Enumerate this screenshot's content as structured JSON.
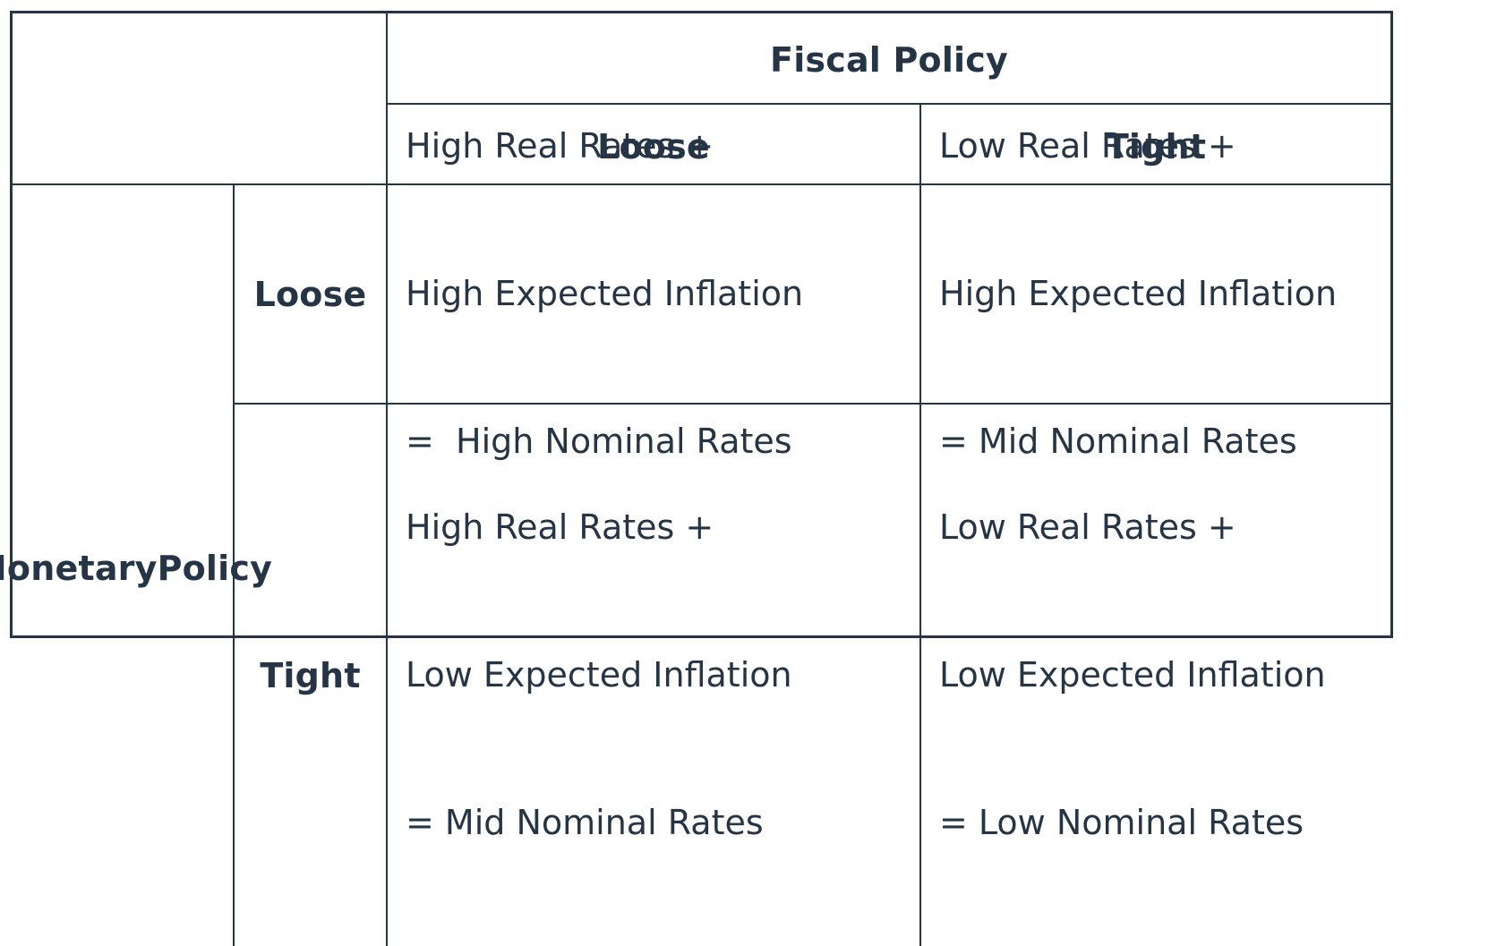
{
  "column_header": {
    "title": "Fiscal Policy",
    "columns": [
      "Loose",
      "Tight"
    ]
  },
  "row_header": {
    "title_lines": [
      "Monetary",
      "Policy"
    ],
    "rows": [
      "Loose",
      "Tight"
    ]
  },
  "cells": {
    "loose_loose": [
      "High Real Rates +",
      "High Expected Inflation",
      "=  High Nominal Rates"
    ],
    "loose_tight": [
      "Low Real Rates +",
      "High Expected Inflation",
      "= Mid Nominal Rates"
    ],
    "tight_loose": [
      "High Real Rates +",
      "Low Expected Inflation",
      "= Mid Nominal Rates"
    ],
    "tight_tight": [
      "Low Real Rates +",
      "Low Expected Inflation",
      "= Low Nominal Rates"
    ]
  }
}
